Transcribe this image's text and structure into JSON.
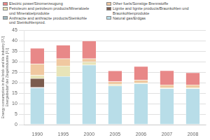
{
  "chart_data": {
    "type": "bar",
    "stacked": true,
    "categories": [
      "1990",
      "1995",
      "2000",
      "2005",
      "2006",
      "2007",
      "2008"
    ],
    "series": [
      {
        "name": "Natural gas/Erdgas",
        "color": "#b8dde8",
        "values": [
          17.5,
          23.0,
          28.5,
          18.5,
          19.5,
          17.2,
          17.2
        ]
      },
      {
        "name": "Anthracite and anthracite products/Steinkohle\nund Steinkohlenprod.",
        "color": "#a0b8c0",
        "values": [
          0.3,
          0.0,
          0.0,
          0.0,
          0.0,
          0.0,
          0.0
        ]
      },
      {
        "name": "Lignite and lignite products/Braunkohlen und\nBraunkohlenprodukte",
        "color": "#7b5c4e",
        "values": [
          4.2,
          0.0,
          0.0,
          0.0,
          0.0,
          0.0,
          0.0
        ]
      },
      {
        "name": "Petroleum and petroleum products/Mineraloele\nund Mineraloelprodukte",
        "color": "#e8e4b8",
        "values": [
          1.5,
          5.0,
          1.5,
          0.8,
          0.5,
          0.5,
          0.5
        ]
      },
      {
        "name": "Other fuels/Sonstige Brennstoffe",
        "color": "#f0c8a0",
        "values": [
          5.5,
          3.5,
          1.5,
          1.2,
          1.3,
          1.3,
          1.3
        ]
      },
      {
        "name": "Electric power/Stromerzeugung",
        "color": "#e88888",
        "values": [
          7.5,
          6.5,
          8.5,
          5.2,
          6.5,
          6.8,
          5.8
        ]
      }
    ],
    "ylabel": "Energy consumption in the brick and tile industry [PJ]\nEnergiebedarf der Ziegelindustrie [PJ]",
    "ylim": [
      0,
      45
    ],
    "yticks": [
      0,
      5,
      10,
      15,
      20,
      25,
      30,
      35,
      40,
      45
    ],
    "grid": true,
    "legend": "top"
  }
}
